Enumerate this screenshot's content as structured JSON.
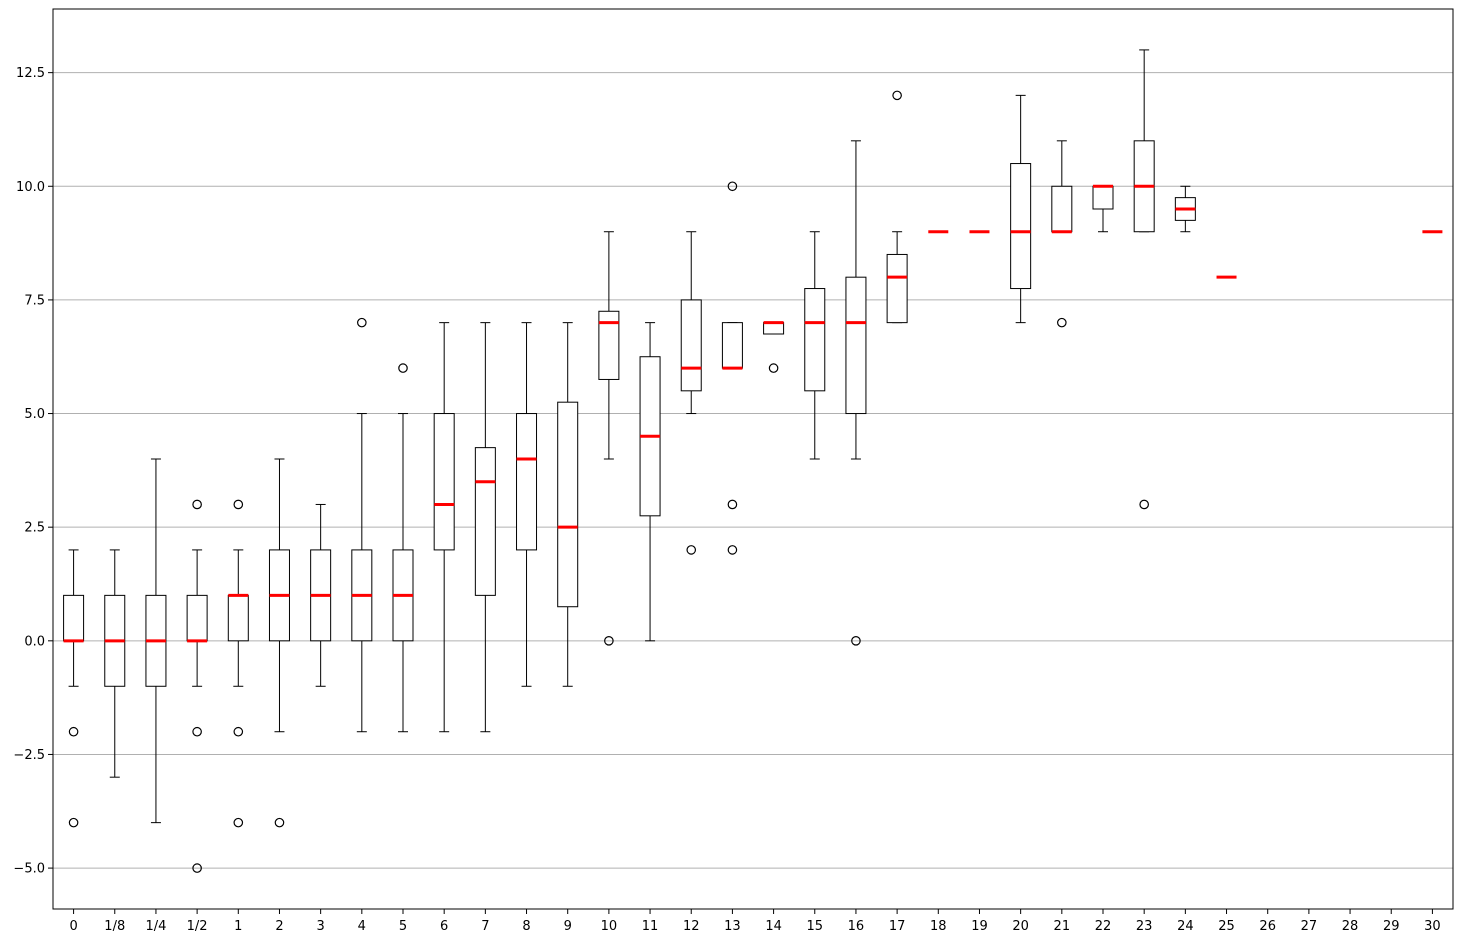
{
  "chart_data": {
    "type": "box",
    "title": "",
    "xlabel": "",
    "ylabel": "",
    "categories": [
      "0",
      "1/8",
      "1/4",
      "1/2",
      "1",
      "2",
      "3",
      "4",
      "5",
      "6",
      "7",
      "8",
      "9",
      "10",
      "11",
      "12",
      "13",
      "14",
      "15",
      "16",
      "17",
      "18",
      "19",
      "20",
      "21",
      "22",
      "23",
      "24",
      "25",
      "26",
      "27",
      "28",
      "29",
      "30"
    ],
    "ylim": [
      -5.9,
      13.9
    ],
    "y_ticks": [
      -5.0,
      -2.5,
      0.0,
      2.5,
      5.0,
      7.5,
      10.0,
      12.5
    ],
    "y_tick_labels": [
      "−5.0",
      "−2.5",
      "0.0",
      "2.5",
      "5.0",
      "7.5",
      "10.0",
      "12.5"
    ],
    "grid": "horizontal",
    "colors": {
      "median": "#ff0000",
      "box": "#000000",
      "grid": "#b0b0b0"
    },
    "boxes": [
      {
        "category": "0",
        "whisker_low": -1,
        "q1": 0,
        "median": 0,
        "q3": 1,
        "whisker_high": 2,
        "fliers": [
          -2,
          -4
        ]
      },
      {
        "category": "1/8",
        "whisker_low": -3,
        "q1": -1,
        "median": 0,
        "q3": 1,
        "whisker_high": 2,
        "fliers": []
      },
      {
        "category": "1/4",
        "whisker_low": -4,
        "q1": -1,
        "median": 0,
        "q3": 1,
        "whisker_high": 4,
        "fliers": []
      },
      {
        "category": "1/2",
        "whisker_low": -1,
        "q1": 0,
        "median": 0,
        "q3": 1,
        "whisker_high": 2,
        "fliers": [
          3,
          -2,
          -5
        ]
      },
      {
        "category": "1",
        "whisker_low": -1,
        "q1": 0,
        "median": 1,
        "q3": 1,
        "whisker_high": 2,
        "fliers": [
          3,
          -2,
          -4
        ]
      },
      {
        "category": "2",
        "whisker_low": -2,
        "q1": 0,
        "median": 1,
        "q3": 2,
        "whisker_high": 4,
        "fliers": [
          -4
        ]
      },
      {
        "category": "3",
        "whisker_low": -1,
        "q1": 0,
        "median": 1,
        "q3": 2,
        "whisker_high": 3,
        "fliers": []
      },
      {
        "category": "4",
        "whisker_low": -2,
        "q1": 0,
        "median": 1,
        "q3": 2,
        "whisker_high": 5,
        "fliers": [
          7
        ]
      },
      {
        "category": "5",
        "whisker_low": -2,
        "q1": 0,
        "median": 1,
        "q3": 2,
        "whisker_high": 5,
        "fliers": [
          6
        ]
      },
      {
        "category": "6",
        "whisker_low": -2,
        "q1": 2,
        "median": 3,
        "q3": 5,
        "whisker_high": 7,
        "fliers": []
      },
      {
        "category": "7",
        "whisker_low": -2,
        "q1": 1,
        "median": 3.5,
        "q3": 4.25,
        "whisker_high": 7,
        "fliers": []
      },
      {
        "category": "8",
        "whisker_low": -1,
        "q1": 2,
        "median": 4,
        "q3": 5,
        "whisker_high": 7,
        "fliers": []
      },
      {
        "category": "9",
        "whisker_low": -1,
        "q1": 0.75,
        "median": 2.5,
        "q3": 5.25,
        "whisker_high": 7,
        "fliers": []
      },
      {
        "category": "10",
        "whisker_low": 4,
        "q1": 5.75,
        "median": 7,
        "q3": 7.25,
        "whisker_high": 9,
        "fliers": [
          0
        ]
      },
      {
        "category": "11",
        "whisker_low": 0,
        "q1": 2.75,
        "median": 4.5,
        "q3": 6.25,
        "whisker_high": 7,
        "fliers": []
      },
      {
        "category": "12",
        "whisker_low": 5,
        "q1": 5.5,
        "median": 6,
        "q3": 7.5,
        "whisker_high": 9,
        "fliers": [
          2
        ]
      },
      {
        "category": "13",
        "whisker_low": 6,
        "q1": 6,
        "median": 6,
        "q3": 7,
        "whisker_high": 7,
        "fliers": [
          10,
          3,
          2
        ]
      },
      {
        "category": "14",
        "whisker_low": 6.75,
        "q1": 6.75,
        "median": 7,
        "q3": 7,
        "whisker_high": 7,
        "fliers": [
          6
        ]
      },
      {
        "category": "15",
        "whisker_low": 4,
        "q1": 5.5,
        "median": 7,
        "q3": 7.75,
        "whisker_high": 9,
        "fliers": []
      },
      {
        "category": "16",
        "whisker_low": 4,
        "q1": 5,
        "median": 7,
        "q3": 8,
        "whisker_high": 11,
        "fliers": [
          0
        ]
      },
      {
        "category": "17",
        "whisker_low": 7,
        "q1": 7,
        "median": 8,
        "q3": 8.5,
        "whisker_high": 9,
        "fliers": [
          12
        ]
      },
      {
        "category": "18",
        "whisker_low": 9,
        "q1": 9,
        "median": 9,
        "q3": 9,
        "whisker_high": 9,
        "fliers": []
      },
      {
        "category": "19",
        "whisker_low": 9,
        "q1": 9,
        "median": 9,
        "q3": 9,
        "whisker_high": 9,
        "fliers": []
      },
      {
        "category": "20",
        "whisker_low": 7,
        "q1": 7.75,
        "median": 9,
        "q3": 10.5,
        "whisker_high": 12,
        "fliers": []
      },
      {
        "category": "21",
        "whisker_low": 9,
        "q1": 9,
        "median": 9,
        "q3": 10,
        "whisker_high": 11,
        "fliers": [
          7
        ]
      },
      {
        "category": "22",
        "whisker_low": 9,
        "q1": 9.5,
        "median": 10,
        "q3": 10,
        "whisker_high": 10,
        "fliers": []
      },
      {
        "category": "23",
        "whisker_low": 9,
        "q1": 9,
        "median": 10,
        "q3": 11,
        "whisker_high": 13,
        "fliers": [
          3
        ]
      },
      {
        "category": "24",
        "whisker_low": 9,
        "q1": 9.25,
        "median": 9.5,
        "q3": 9.75,
        "whisker_high": 10,
        "fliers": []
      },
      {
        "category": "25",
        "whisker_low": 8,
        "q1": 8,
        "median": 8,
        "q3": 8,
        "whisker_high": 8,
        "fliers": []
      },
      {
        "category": "26",
        "empty": true
      },
      {
        "category": "27",
        "empty": true
      },
      {
        "category": "28",
        "empty": true
      },
      {
        "category": "29",
        "empty": true
      },
      {
        "category": "30",
        "whisker_low": 9,
        "q1": 9,
        "median": 9,
        "q3": 9,
        "whisker_high": 9,
        "fliers": []
      }
    ]
  }
}
